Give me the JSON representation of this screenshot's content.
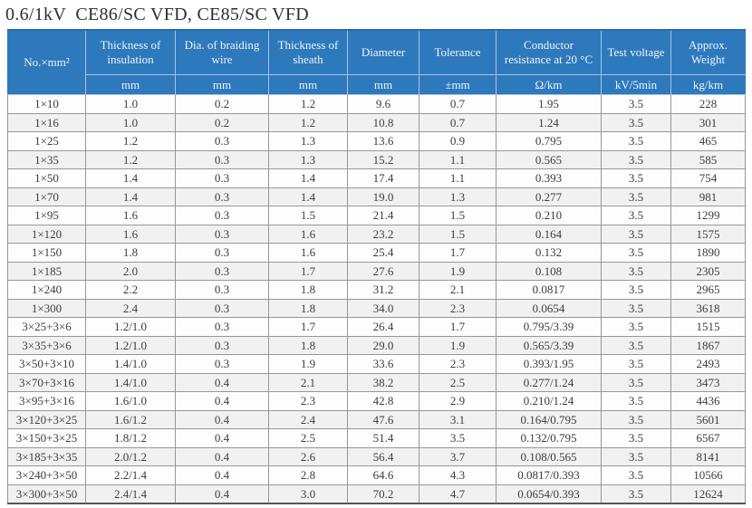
{
  "title": "0.6/1kV  CE86/SC VFD, CE85/SC VFD",
  "colors": {
    "header_bg": "#2e79bc",
    "header_text": "#eef4fb",
    "row_bg": "#fdfdfd",
    "row_alt_bg": "#f1f1f1",
    "body_text": "#3d3d3d",
    "grid_line": "#979797"
  },
  "table": {
    "columns": [
      {
        "label": "No.×mm²",
        "unit": ""
      },
      {
        "label": "Thickness of insulation",
        "unit": "mm"
      },
      {
        "label": "Dia. of braiding wire",
        "unit": "mm"
      },
      {
        "label": "Thickness of sheath",
        "unit": "mm"
      },
      {
        "label": "Diameter",
        "unit": "mm"
      },
      {
        "label": "Tolerance",
        "unit": "±mm"
      },
      {
        "label": "Conductor resistance at 20 °C",
        "unit": "Ω/km"
      },
      {
        "label": "Test voltage",
        "unit": "kV/5min"
      },
      {
        "label": "Approx. Weight",
        "unit": "kg/km"
      }
    ],
    "rows": [
      [
        "1×10",
        "1.0",
        "0.2",
        "1.2",
        "9.6",
        "0.7",
        "1.95",
        "3.5",
        "228"
      ],
      [
        "1×16",
        "1.0",
        "0.2",
        "1.2",
        "10.8",
        "0.7",
        "1.24",
        "3.5",
        "301"
      ],
      [
        "1×25",
        "1.2",
        "0.3",
        "1.3",
        "13.6",
        "0.9",
        "0.795",
        "3.5",
        "465"
      ],
      [
        "1×35",
        "1.2",
        "0.3",
        "1.3",
        "15.2",
        "1.1",
        "0.565",
        "3.5",
        "585"
      ],
      [
        "1×50",
        "1.4",
        "0.3",
        "1.4",
        "17.4",
        "1.1",
        "0.393",
        "3.5",
        "754"
      ],
      [
        "1×70",
        "1.4",
        "0.3",
        "1.4",
        "19.0",
        "1.3",
        "0.277",
        "3.5",
        "981"
      ],
      [
        "1×95",
        "1.6",
        "0.3",
        "1.5",
        "21.4",
        "1.5",
        "0.210",
        "3.5",
        "1299"
      ],
      [
        "1×120",
        "1.6",
        "0.3",
        "1.6",
        "23.2",
        "1.5",
        "0.164",
        "3.5",
        "1575"
      ],
      [
        "1×150",
        "1.8",
        "0.3",
        "1.6",
        "25.4",
        "1.7",
        "0.132",
        "3.5",
        "1890"
      ],
      [
        "1×185",
        "2.0",
        "0.3",
        "1.7",
        "27.6",
        "1.9",
        "0.108",
        "3.5",
        "2305"
      ],
      [
        "1×240",
        "2.2",
        "0.3",
        "1.8",
        "31.2",
        "2.1",
        "0.0817",
        "3.5",
        "2965"
      ],
      [
        "1×300",
        "2.4",
        "0.3",
        "1.8",
        "34.0",
        "2.3",
        "0.0654",
        "3.5",
        "3618"
      ],
      [
        "3×25+3×6",
        "1.2/1.0",
        "0.3",
        "1.7",
        "26.4",
        "1.7",
        "0.795/3.39",
        "3.5",
        "1515"
      ],
      [
        "3×35+3×6",
        "1.2/1.0",
        "0.3",
        "1.8",
        "29.0",
        "1.9",
        "0.565/3.39",
        "3.5",
        "1867"
      ],
      [
        "3×50+3×10",
        "1.4/1.0",
        "0.3",
        "1.9",
        "33.6",
        "2.3",
        "0.393/1.95",
        "3.5",
        "2493"
      ],
      [
        "3×70+3×16",
        "1.4/1.0",
        "0.4",
        "2.1",
        "38.2",
        "2.5",
        "0.277/1.24",
        "3.5",
        "3473"
      ],
      [
        "3×95+3×16",
        "1.6/1.0",
        "0.4",
        "2.3",
        "42.8",
        "2.9",
        "0.210/1.24",
        "3.5",
        "4436"
      ],
      [
        "3×120+3×25",
        "1.6/1.2",
        "0.4",
        "2.4",
        "47.6",
        "3.1",
        "0.164/0.795",
        "3.5",
        "5601"
      ],
      [
        "3×150+3×25",
        "1.8/1.2",
        "0.4",
        "2.5",
        "51.4",
        "3.5",
        "0.132/0.795",
        "3.5",
        "6567"
      ],
      [
        "3×185+3×35",
        "2.0/1.2",
        "0.4",
        "2.6",
        "56.4",
        "3.7",
        "0.108/0.565",
        "3.5",
        "8141"
      ],
      [
        "3×240+3×50",
        "2.2/1.4",
        "0.4",
        "2.8",
        "64.6",
        "4.3",
        "0.0817/0.393",
        "3.5",
        "10566"
      ],
      [
        "3×300+3×50",
        "2.4/1.4",
        "0.4",
        "3.0",
        "70.2",
        "4.7",
        "0.0654/0.393",
        "3.5",
        "12624"
      ]
    ]
  }
}
